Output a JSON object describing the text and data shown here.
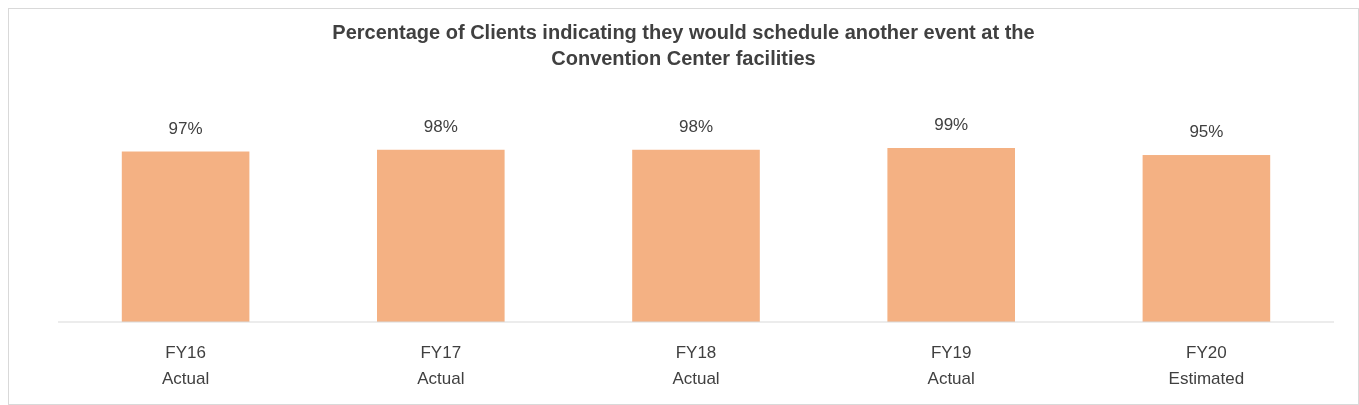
{
  "chart_data": {
    "type": "bar",
    "title": "Percentage of Clients indicating they would schedule another event at the\nConvention Center facilities",
    "categories": [
      "FY16\nActual",
      "FY17\nActual",
      "FY18\nActual",
      "FY19\nActual",
      "FY20\nEstimated"
    ],
    "values": [
      97,
      98,
      98,
      99,
      95
    ],
    "value_labels": [
      "97%",
      "98%",
      "98%",
      "99%",
      "95%"
    ],
    "color": "#f4b183"
  }
}
